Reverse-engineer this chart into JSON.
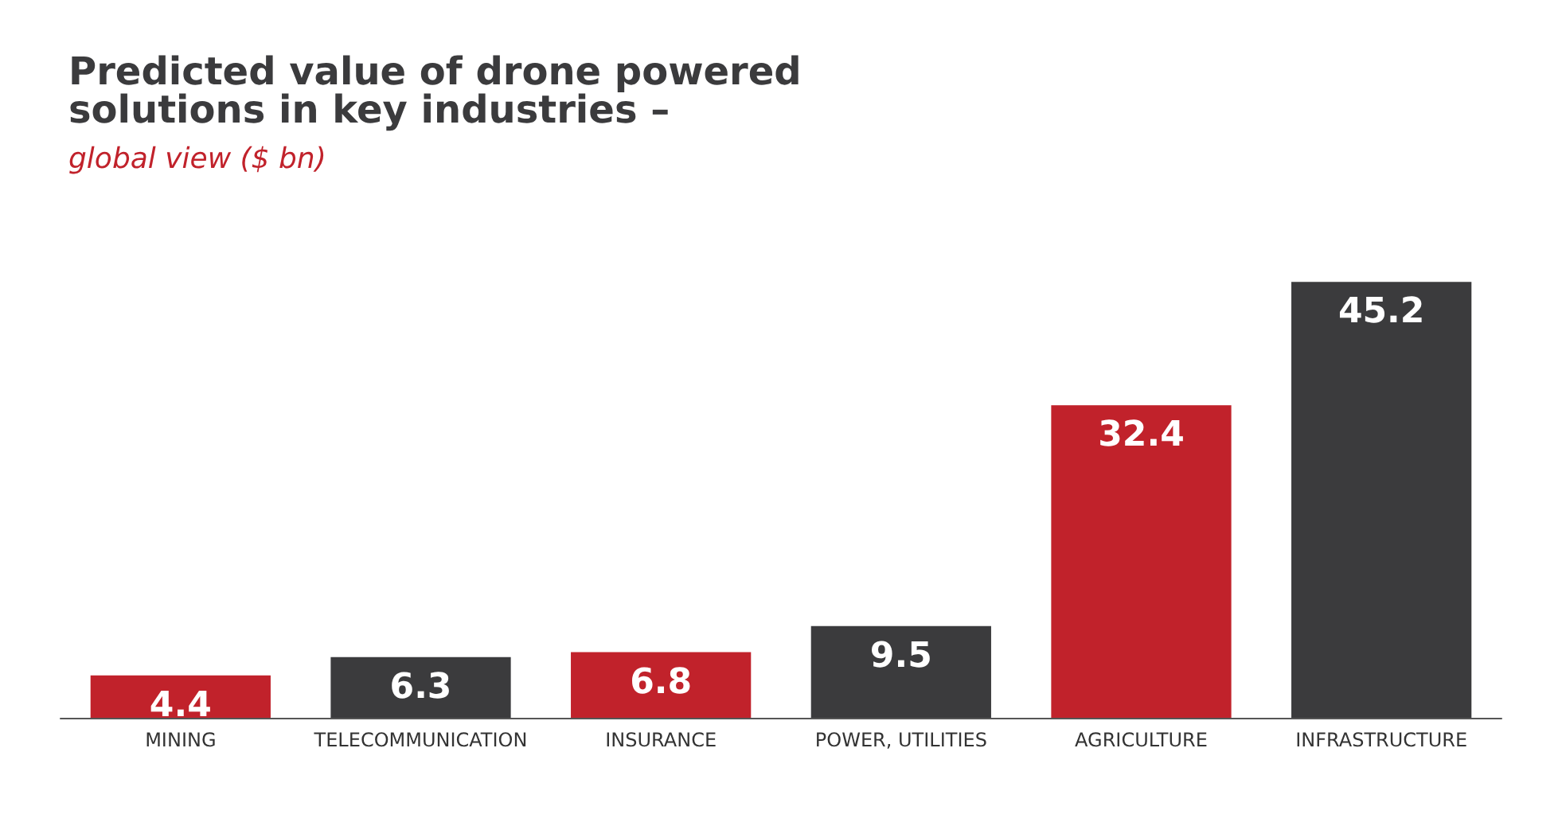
{
  "chart_data": {
    "type": "bar",
    "title": "Predicted value of drone powered solutions in key industries –",
    "subtitle": "global view ($ bn)",
    "categories": [
      "MINING",
      "TELECOMMUNICATION",
      "INSURANCE",
      "POWER, UTILITIES",
      "AGRICULTURE",
      "INFRASTRUCTURE"
    ],
    "values": [
      4.4,
      6.3,
      6.8,
      9.5,
      32.4,
      45.2
    ],
    "colors": [
      "#c1222b",
      "#3b3b3d",
      "#c1222b",
      "#3b3b3d",
      "#c1222b",
      "#3b3b3d"
    ],
    "data_labels": true,
    "tick_labels": "x"
  }
}
